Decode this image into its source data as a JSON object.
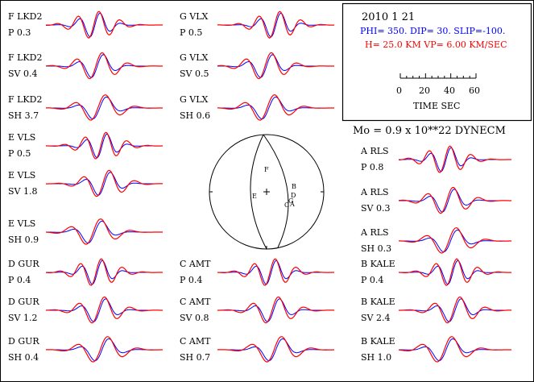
{
  "header": {
    "date": "2010   1  21",
    "mechanism": "PHI= 350.  DIP= 30.  SLIP=-100.",
    "depth_velocity": "H= 25.0 KM   VP= 6.00 KM/SEC",
    "time_ticks": [
      "0",
      "20",
      "40",
      "60"
    ],
    "time_label": "TIME   SEC",
    "moment": "Mo =   0.9 x 10**22  DYNECM"
  },
  "colors": {
    "observed": "#ff0000",
    "synthetic": "#0000ff",
    "frame": "#000000"
  },
  "stations": [
    {
      "code": "F",
      "name": "LKD2",
      "comp": "P",
      "amp": "0.3"
    },
    {
      "code": "F",
      "name": "LKD2",
      "comp": "SV",
      "amp": "0.4"
    },
    {
      "code": "F",
      "name": "LKD2",
      "comp": "SH",
      "amp": "3.7"
    },
    {
      "code": "E",
      "name": "VLS",
      "comp": "P",
      "amp": "0.5"
    },
    {
      "code": "E",
      "name": "VLS",
      "comp": "SV",
      "amp": "1.8"
    },
    {
      "code": "E",
      "name": "VLS",
      "comp": "SH",
      "amp": "0.9"
    },
    {
      "code": "D",
      "name": "GUR",
      "comp": "P",
      "amp": "0.4"
    },
    {
      "code": "D",
      "name": "GUR",
      "comp": "SV",
      "amp": "1.2"
    },
    {
      "code": "D",
      "name": "GUR",
      "comp": "SH",
      "amp": "0.4"
    },
    {
      "code": "G",
      "name": "VLX",
      "comp": "P",
      "amp": "0.5"
    },
    {
      "code": "G",
      "name": "VLX",
      "comp": "SV",
      "amp": "0.5"
    },
    {
      "code": "G",
      "name": "VLX",
      "comp": "SH",
      "amp": "0.6"
    },
    {
      "code": "C",
      "name": "AMT",
      "comp": "P",
      "amp": "0.4"
    },
    {
      "code": "C",
      "name": "AMT",
      "comp": "SV",
      "amp": "0.8"
    },
    {
      "code": "C",
      "name": "AMT",
      "comp": "SH",
      "amp": "0.7"
    },
    {
      "code": "A",
      "name": "RLS",
      "comp": "P",
      "amp": "0.8"
    },
    {
      "code": "A",
      "name": "RLS",
      "comp": "SV",
      "amp": "0.3"
    },
    {
      "code": "A",
      "name": "RLS",
      "comp": "SH",
      "amp": "0.3"
    },
    {
      "code": "B",
      "name": "KALE",
      "comp": "P",
      "amp": "0.4"
    },
    {
      "code": "B",
      "name": "KALE",
      "comp": "SV",
      "amp": "2.4"
    },
    {
      "code": "B",
      "name": "KALE",
      "comp": "SH",
      "amp": "1.0"
    }
  ],
  "beachball": {
    "stations": [
      "F",
      "E",
      "B",
      "D",
      "G",
      "C",
      "A"
    ]
  }
}
